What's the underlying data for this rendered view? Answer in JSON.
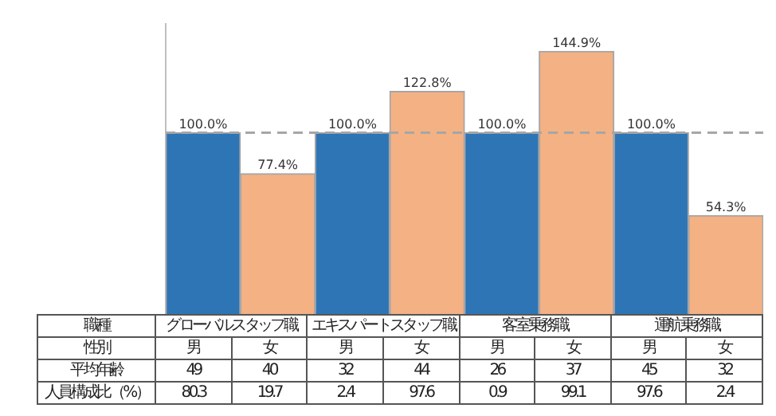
{
  "chart_data": {
    "type": "bar",
    "xlabel": "性別",
    "categories": [
      "男",
      "女",
      "男",
      "女",
      "男",
      "女",
      "男",
      "女"
    ],
    "series": [
      {
        "colors": [
          "#2e75b6",
          "#f4b183",
          "#2e75b6",
          "#f4b183",
          "#2e75b6",
          "#f4b183",
          "#2e75b6",
          "#f4b183"
        ],
        "values": [
          100,
          77.4,
          100,
          122.8,
          100,
          144.9,
          100,
          54.3
        ],
        "value_labels": [
          "100.0%",
          "77.4%",
          "100.0%",
          "122.8%",
          "100.0%",
          "144.9%",
          "100.0%",
          "54.3%"
        ]
      }
    ],
    "ylim": [
      0,
      160
    ],
    "ref_lines": [
      {
        "axis": "y",
        "value": 100,
        "color": "#a6a6a6",
        "line_style": "dashed"
      }
    ],
    "annotations": [
      "職種",
      "グローバルスタッフ職",
      "エキスパートスタッフ職",
      "客室乗務職",
      "運航乗務職",
      "平均年齢",
      "49",
      "40",
      "32",
      "44",
      "26",
      "37",
      "45",
      "32",
      "人員構成比（%）",
      "80.3",
      "19.7",
      "2.4",
      "97.6",
      "0.9",
      "99.1",
      "97.6",
      "2.4"
    ],
    "grid": false,
    "legend": false
  }
}
